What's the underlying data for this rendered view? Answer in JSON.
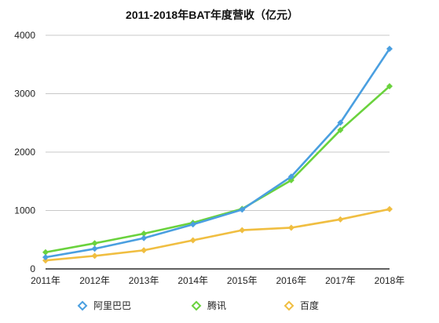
{
  "chart_data": {
    "type": "line",
    "title": "2011-2018年BAT年度营收（亿元）",
    "categories": [
      "2011年",
      "2012年",
      "2013年",
      "2014年",
      "2015年",
      "2016年",
      "2017年",
      "2018年"
    ],
    "series": [
      {
        "name": "阿里巴巴",
        "color": "#4a9fe0",
        "values": [
          200,
          345,
          527,
          762,
          1015,
          1580,
          2503,
          3768
        ]
      },
      {
        "name": "腾讯",
        "color": "#6ad23d",
        "values": [
          285,
          439,
          604,
          790,
          1029,
          1519,
          2377,
          3127
        ]
      },
      {
        "name": "百度",
        "color": "#f0be41",
        "values": [
          145,
          223,
          319,
          490,
          663,
          705,
          848,
          1023
        ]
      }
    ],
    "ylim": [
      0,
      4000
    ],
    "yticks": [
      0,
      1000,
      2000,
      3000,
      4000
    ],
    "grid": true,
    "legend": "bottom",
    "marker": "diamond"
  }
}
